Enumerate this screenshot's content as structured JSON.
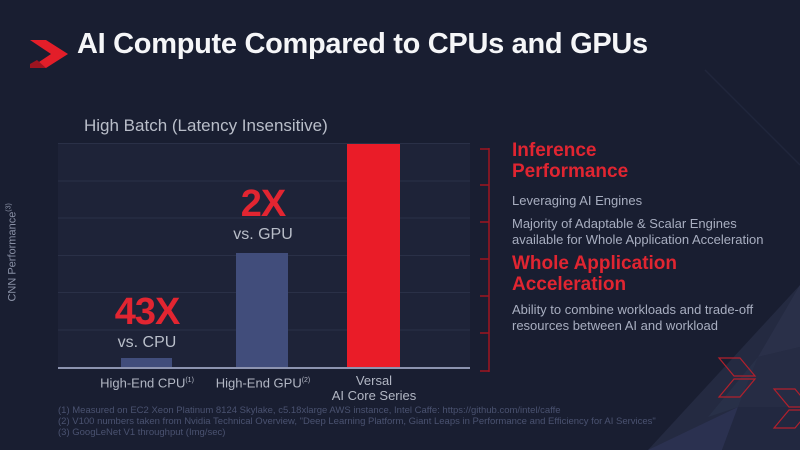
{
  "slide": {
    "title": "AI Compute Compared to CPUs and GPUs"
  },
  "colors": {
    "background": "#191e31",
    "accent_red": "#e22531",
    "bar_blue": "#414d7b",
    "bar_red": "#ea1c28",
    "bracket_red": "#9f1520",
    "text_gray": "#b2b7c4",
    "footnote_gray": "#4a5270"
  },
  "chart_data": {
    "type": "bar",
    "title": "High Batch (Latency Insensitive)",
    "ylabel": "CNN Performance",
    "ylabel_sup": "(3)",
    "xlabel": "",
    "grid": "horizontal gridlines, no numeric ticks",
    "legend": "none",
    "categories": [
      {
        "line1": "High-End CPU",
        "line2": "",
        "sup": "(1)"
      },
      {
        "line1": "High-End GPU",
        "line2": "",
        "sup": "(2)"
      },
      {
        "line1": "Versal",
        "line2": "AI Core Series",
        "sup": ""
      }
    ],
    "relative_values": [
      1,
      21.5,
      43
    ],
    "values_pct": [
      4,
      51,
      99.5
    ],
    "bar_colors": [
      "#414d7b",
      "#414d7b",
      "#ea1c28"
    ],
    "annotations": [
      {
        "text": "43X",
        "subtext": "vs. CPU",
        "over": "High-End CPU"
      },
      {
        "text": "2X",
        "subtext": "vs. GPU",
        "over": "High-End GPU"
      }
    ]
  },
  "right_panel": {
    "heading1": "Inference Performance",
    "bullet1": "Leveraging AI Engines",
    "bullet2": "Majority of Adaptable & Scalar Engines available for Whole Application Acceleration",
    "heading2": "Whole Application Acceleration",
    "bullet3": "Ability to combine workloads and trade-off resources between AI and workload"
  },
  "footnotes": [
    "(1)  Measured on EC2 Xeon Platinum 8124 Skylake, c5.18xlarge AWS instance, Intel Caffe:  https://github.com/intel/caffe",
    "(2) V100 numbers taken from Nvidia Technical Overview, \"Deep Learning Platform, Giant Leaps in Performance and Efficiency for AI Services\"",
    "(3) GoogLeNet V1 throughput (Img/sec)"
  ]
}
